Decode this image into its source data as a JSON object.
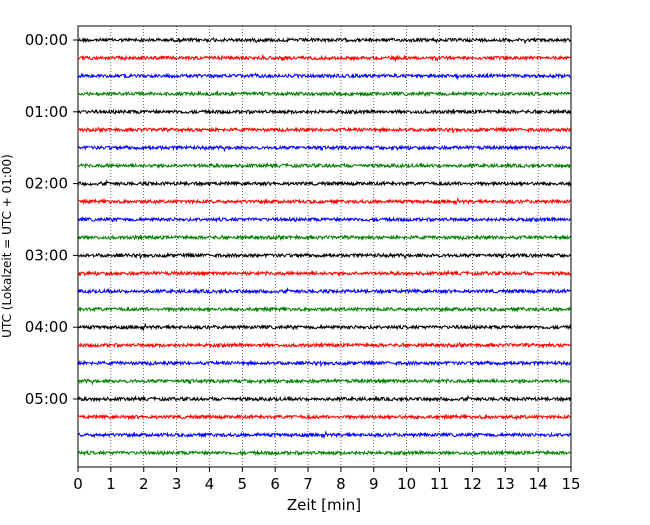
{
  "chart_data": {
    "type": "line",
    "title": "",
    "xlabel": "Zeit  [min]",
    "ylabel": "UTC (Lokalzeit = UTC + 01:00)",
    "xlim": [
      0,
      15
    ],
    "x_ticks": [
      "0",
      "1",
      "2",
      "3",
      "4",
      "5",
      "6",
      "7",
      "8",
      "9",
      "10",
      "11",
      "12",
      "13",
      "14",
      "15"
    ],
    "y_ticks": [
      "00:00",
      "01:00",
      "02:00",
      "03:00",
      "04:00",
      "05:00"
    ],
    "minutes_per_trace": 15,
    "traces_per_hour": 4,
    "trace_count": 24,
    "trace_colors": [
      "#000000",
      "#ff0000",
      "#0000ff",
      "#008000"
    ],
    "grid": "vertical dotted lines at each minute",
    "legend": "none"
  }
}
